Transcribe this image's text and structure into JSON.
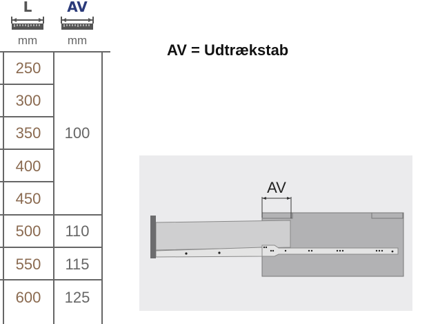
{
  "header": {
    "length_label": "L",
    "av_label": "AV",
    "length_unit": "mm",
    "av_unit": "mm",
    "av_label_color": "#2a3a7a"
  },
  "table": {
    "rows": [
      {
        "length": "250",
        "av": ""
      },
      {
        "length": "300",
        "av": ""
      },
      {
        "length": "350",
        "av": "100"
      },
      {
        "length": "400",
        "av": ""
      },
      {
        "length": "450",
        "av": ""
      },
      {
        "length": "500",
        "av": "110"
      },
      {
        "length": "550",
        "av": "115"
      },
      {
        "length": "600",
        "av": "125"
      }
    ]
  },
  "title": "AV = Udtrækstab",
  "diagram": {
    "dimension_label": "AV"
  }
}
